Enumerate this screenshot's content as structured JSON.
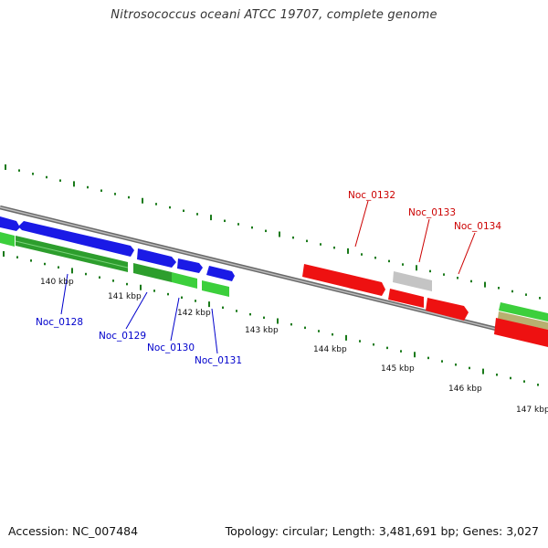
{
  "title": "Nitrosococcus oceani ATCC 19707, complete genome",
  "footer": {
    "accession": "Accession: NC_007484",
    "summary": "Topology: circular; Length: 3,481,691 bp; Genes: 3,027"
  },
  "colors": {
    "forward_gene": "#1a1ae6",
    "reverse_gene_dark": "#2d9e2d",
    "reverse_gene_light": "#3ccf3c",
    "highlight_gene": "#ee1111",
    "pseudo_gene": "#c0c0c0",
    "olive_gene": "#b8b070",
    "backbone": "#808080",
    "tick": "#1a7a1a",
    "label_blue": "#0000cc",
    "label_red": "#cc0000"
  },
  "scale_labels": [
    "140 kbp",
    "141 kbp",
    "142 kbp",
    "143 kbp",
    "144 kbp",
    "145 kbp",
    "146 kbp",
    "147 kbp"
  ],
  "gene_labels": [
    {
      "text": "Noc_0128",
      "color": "blue"
    },
    {
      "text": "Noc_0129",
      "color": "blue"
    },
    {
      "text": "Noc_0130",
      "color": "blue"
    },
    {
      "text": "Noc_0131",
      "color": "blue"
    },
    {
      "text": "Noc_0132",
      "color": "red"
    },
    {
      "text": "Noc_0133",
      "color": "red"
    },
    {
      "text": "Noc_0134",
      "color": "red"
    }
  ]
}
